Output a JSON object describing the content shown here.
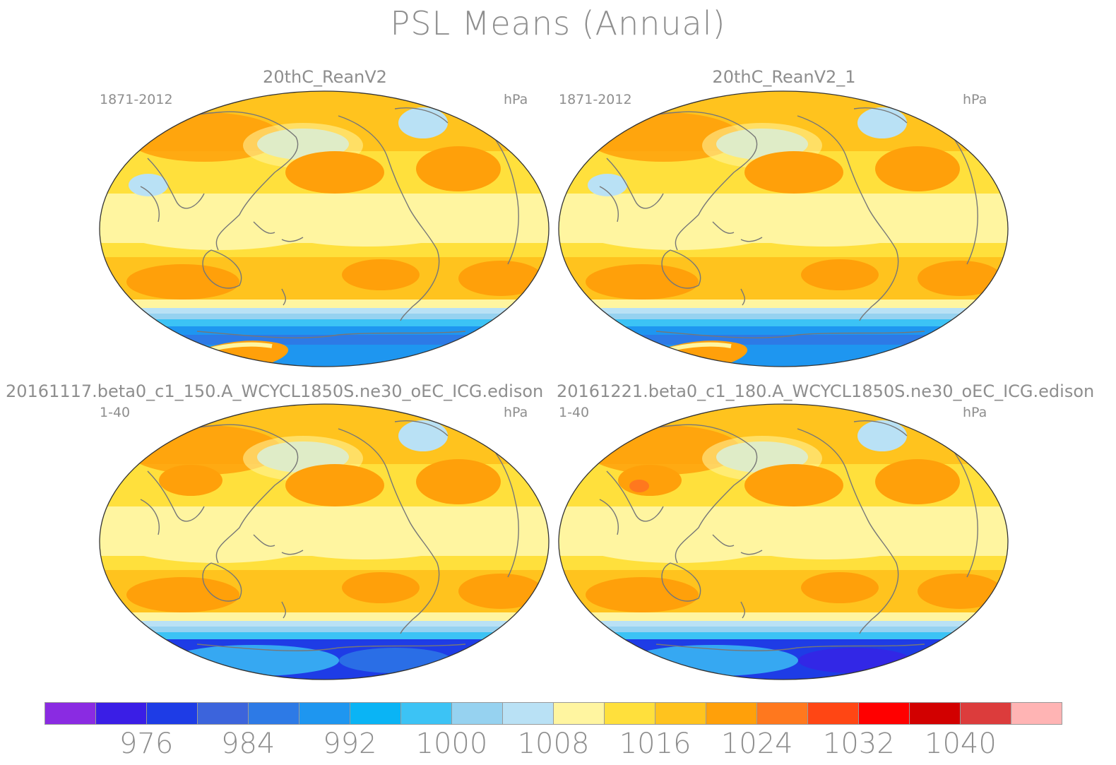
{
  "title": "PSL Means (Annual)",
  "panels": [
    {
      "title": "20thC_ReanV2",
      "period": "1871-2012",
      "units": "hPa"
    },
    {
      "title": "20thC_ReanV2_1",
      "period": "1871-2012",
      "units": "hPa"
    },
    {
      "title": "20161117.beta0_c1_150.A_WCYCL1850S.ne30_oEC_ICG.edison",
      "period": "1-40",
      "units": "hPa"
    },
    {
      "title": "20161221.beta0_c1_180.A_WCYCL1850S.ne30_oEC_ICG.edison",
      "period": "1-40",
      "units": "hPa"
    }
  ],
  "colorbar": {
    "colors": [
      "#8a2be2",
      "#3a1ee6",
      "#1e3ce6",
      "#3c64dc",
      "#2d7ae6",
      "#1e96f0",
      "#0ab4f5",
      "#3cc3f5",
      "#96d2f0",
      "#b9e1f5",
      "#fff5a0",
      "#ffe03c",
      "#ffc31e",
      "#ffa00a",
      "#ff781e",
      "#ff4614",
      "#ff0000",
      "#d20000",
      "#dc3c3c",
      "#ffb4b4"
    ],
    "labels": [
      "976",
      "984",
      "992",
      "1000",
      "1008",
      "1016",
      "1024",
      "1032",
      "1040"
    ]
  }
}
